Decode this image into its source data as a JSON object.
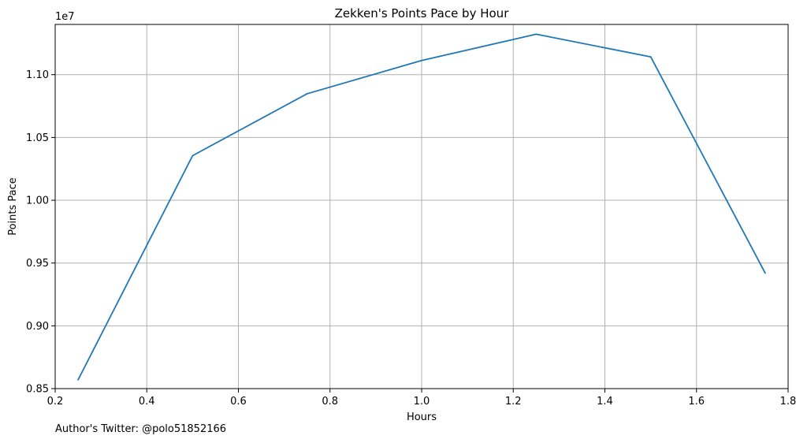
{
  "chart_data": {
    "type": "line",
    "title": "Zekken's Points Pace by Hour",
    "xlabel": "Hours",
    "ylabel": "Points Pace",
    "y_offset_label": "1e7",
    "x": [
      0.25,
      0.5,
      0.75,
      1.0,
      1.25,
      1.5,
      1.75
    ],
    "series": [
      {
        "values": [
          8570000,
          10355000,
          10848000,
          11113000,
          11322000,
          11142000,
          9420000
        ],
        "color": "#1f77b4"
      }
    ],
    "xlim": [
      0.2,
      1.8
    ],
    "ylim": [
      0.85,
      1.14
    ],
    "xticks": [
      "0.2",
      "0.4",
      "0.6",
      "0.8",
      "1.0",
      "1.2",
      "1.4",
      "1.6",
      "1.8"
    ],
    "yticks": [
      "0.85",
      "0.90",
      "0.95",
      "1.00",
      "1.05",
      "1.10"
    ],
    "grid": true,
    "legend": "none"
  },
  "footer": {
    "note": "Author's Twitter: @polo51852166"
  }
}
